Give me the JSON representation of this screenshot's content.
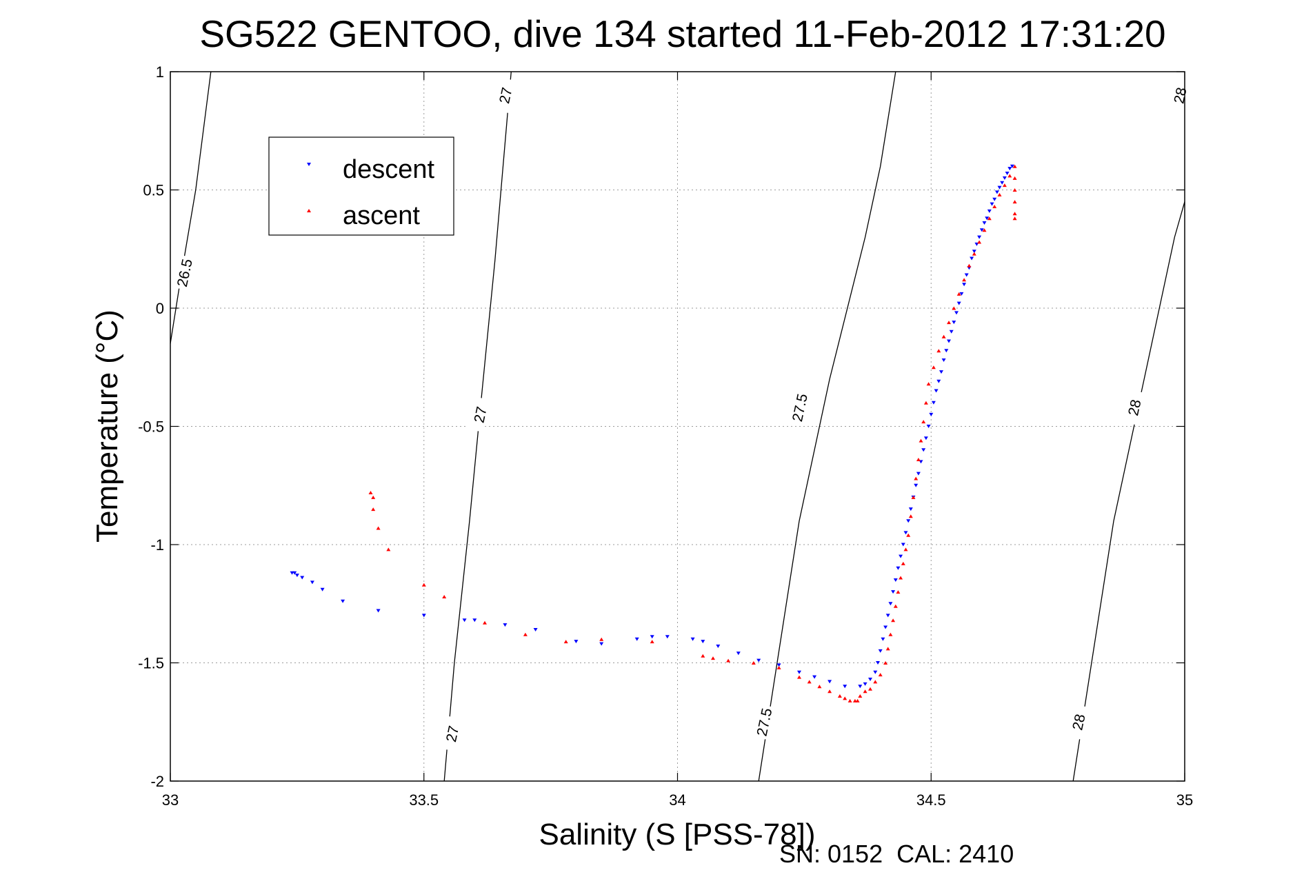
{
  "chart_data": {
    "type": "scatter",
    "title": "SG522 GENTOO, dive 134 started 11-Feb-2012 17:31:20",
    "xlabel": "Salinity (S [PSS-78])",
    "ylabel": "Temperature (°C)",
    "footer": "SN: 0152  CAL: 2410",
    "xlim": [
      33,
      35
    ],
    "ylim": [
      -2,
      1
    ],
    "xticks": [
      33,
      33.5,
      34,
      34.5,
      35
    ],
    "xtick_labels": [
      "33",
      "33.5",
      "34",
      "34.5",
      "35"
    ],
    "yticks": [
      -2,
      -1.5,
      -1,
      -0.5,
      0,
      0.5,
      1
    ],
    "ytick_labels": [
      "-2",
      "-1.5",
      "-1",
      "-0.5",
      "0",
      "0.5",
      "1"
    ],
    "grid": true,
    "legend_position": "top-left",
    "series": [
      {
        "name": "descent",
        "color": "#0000ff",
        "marker": "triangle-down",
        "points": [
          [
            34.66,
            0.6
          ],
          [
            34.655,
            0.59
          ],
          [
            34.65,
            0.57
          ],
          [
            34.645,
            0.55
          ],
          [
            34.64,
            0.53
          ],
          [
            34.635,
            0.51
          ],
          [
            34.63,
            0.49
          ],
          [
            34.625,
            0.46
          ],
          [
            34.62,
            0.44
          ],
          [
            34.615,
            0.41
          ],
          [
            34.61,
            0.38
          ],
          [
            34.605,
            0.36
          ],
          [
            34.6,
            0.33
          ],
          [
            34.595,
            0.3
          ],
          [
            34.59,
            0.27
          ],
          [
            34.585,
            0.24
          ],
          [
            34.58,
            0.21
          ],
          [
            34.575,
            0.17
          ],
          [
            34.57,
            0.14
          ],
          [
            34.565,
            0.1
          ],
          [
            34.56,
            0.06
          ],
          [
            34.555,
            0.02
          ],
          [
            34.55,
            -0.02
          ],
          [
            34.545,
            -0.06
          ],
          [
            34.54,
            -0.1
          ],
          [
            34.535,
            -0.14
          ],
          [
            34.53,
            -0.18
          ],
          [
            34.525,
            -0.22
          ],
          [
            34.52,
            -0.27
          ],
          [
            34.515,
            -0.31
          ],
          [
            34.51,
            -0.35
          ],
          [
            34.505,
            -0.4
          ],
          [
            34.5,
            -0.45
          ],
          [
            34.495,
            -0.5
          ],
          [
            34.49,
            -0.55
          ],
          [
            34.485,
            -0.6
          ],
          [
            34.48,
            -0.65
          ],
          [
            34.475,
            -0.7
          ],
          [
            34.47,
            -0.75
          ],
          [
            34.465,
            -0.8
          ],
          [
            34.46,
            -0.85
          ],
          [
            34.455,
            -0.9
          ],
          [
            34.45,
            -0.95
          ],
          [
            34.445,
            -1.0
          ],
          [
            34.44,
            -1.05
          ],
          [
            34.435,
            -1.1
          ],
          [
            34.43,
            -1.15
          ],
          [
            34.425,
            -1.2
          ],
          [
            34.42,
            -1.25
          ],
          [
            34.415,
            -1.3
          ],
          [
            34.41,
            -1.35
          ],
          [
            34.405,
            -1.4
          ],
          [
            34.4,
            -1.45
          ],
          [
            34.395,
            -1.5
          ],
          [
            34.39,
            -1.54
          ],
          [
            34.38,
            -1.57
          ],
          [
            34.37,
            -1.59
          ],
          [
            34.36,
            -1.6
          ],
          [
            34.33,
            -1.6
          ],
          [
            34.3,
            -1.58
          ],
          [
            34.27,
            -1.56
          ],
          [
            34.24,
            -1.54
          ],
          [
            34.2,
            -1.51
          ],
          [
            34.16,
            -1.49
          ],
          [
            34.12,
            -1.46
          ],
          [
            34.08,
            -1.43
          ],
          [
            34.05,
            -1.41
          ],
          [
            34.03,
            -1.4
          ],
          [
            33.98,
            -1.39
          ],
          [
            33.95,
            -1.39
          ],
          [
            33.92,
            -1.4
          ],
          [
            33.85,
            -1.42
          ],
          [
            33.8,
            -1.41
          ],
          [
            33.72,
            -1.36
          ],
          [
            33.66,
            -1.34
          ],
          [
            33.6,
            -1.32
          ],
          [
            33.58,
            -1.32
          ],
          [
            33.5,
            -1.3
          ],
          [
            33.41,
            -1.28
          ],
          [
            33.34,
            -1.24
          ],
          [
            33.3,
            -1.19
          ],
          [
            33.28,
            -1.16
          ],
          [
            33.26,
            -1.14
          ],
          [
            33.25,
            -1.13
          ],
          [
            33.245,
            -1.12
          ],
          [
            33.24,
            -1.12
          ]
        ]
      },
      {
        "name": "ascent",
        "color": "#ff0000",
        "marker": "triangle-up",
        "points": [
          [
            34.665,
            0.6
          ],
          [
            34.665,
            0.55
          ],
          [
            34.665,
            0.5
          ],
          [
            34.665,
            0.45
          ],
          [
            34.665,
            0.4
          ],
          [
            34.665,
            0.38
          ],
          [
            34.655,
            0.56
          ],
          [
            34.645,
            0.52
          ],
          [
            34.635,
            0.48
          ],
          [
            34.625,
            0.43
          ],
          [
            34.615,
            0.38
          ],
          [
            34.605,
            0.33
          ],
          [
            34.595,
            0.28
          ],
          [
            34.585,
            0.23
          ],
          [
            34.575,
            0.18
          ],
          [
            34.565,
            0.12
          ],
          [
            34.555,
            0.06
          ],
          [
            34.545,
            0.0
          ],
          [
            34.535,
            -0.06
          ],
          [
            34.525,
            -0.12
          ],
          [
            34.515,
            -0.18
          ],
          [
            34.505,
            -0.25
          ],
          [
            34.495,
            -0.32
          ],
          [
            34.49,
            -0.4
          ],
          [
            34.485,
            -0.48
          ],
          [
            34.48,
            -0.56
          ],
          [
            34.475,
            -0.64
          ],
          [
            34.47,
            -0.72
          ],
          [
            34.465,
            -0.8
          ],
          [
            34.46,
            -0.88
          ],
          [
            34.455,
            -0.96
          ],
          [
            34.45,
            -1.02
          ],
          [
            34.445,
            -1.08
          ],
          [
            34.44,
            -1.14
          ],
          [
            34.435,
            -1.2
          ],
          [
            34.43,
            -1.26
          ],
          [
            34.425,
            -1.32
          ],
          [
            34.42,
            -1.38
          ],
          [
            34.415,
            -1.44
          ],
          [
            34.41,
            -1.5
          ],
          [
            34.4,
            -1.55
          ],
          [
            34.39,
            -1.58
          ],
          [
            34.38,
            -1.61
          ],
          [
            34.37,
            -1.62
          ],
          [
            34.36,
            -1.64
          ],
          [
            34.355,
            -1.66
          ],
          [
            34.35,
            -1.66
          ],
          [
            34.34,
            -1.66
          ],
          [
            34.33,
            -1.65
          ],
          [
            34.32,
            -1.64
          ],
          [
            34.3,
            -1.62
          ],
          [
            34.28,
            -1.6
          ],
          [
            34.26,
            -1.58
          ],
          [
            34.24,
            -1.56
          ],
          [
            34.2,
            -1.52
          ],
          [
            34.15,
            -1.5
          ],
          [
            34.1,
            -1.49
          ],
          [
            34.07,
            -1.48
          ],
          [
            34.05,
            -1.47
          ],
          [
            33.95,
            -1.41
          ],
          [
            33.85,
            -1.4
          ],
          [
            33.78,
            -1.41
          ],
          [
            33.7,
            -1.38
          ],
          [
            33.62,
            -1.33
          ],
          [
            33.54,
            -1.22
          ],
          [
            33.5,
            -1.17
          ],
          [
            33.43,
            -1.02
          ],
          [
            33.41,
            -0.93
          ],
          [
            33.4,
            -0.85
          ],
          [
            33.4,
            -0.8
          ],
          [
            33.395,
            -0.78
          ]
        ]
      }
    ],
    "contours": [
      {
        "label": "26.5",
        "line": [
          [
            33.0,
            -0.15
          ],
          [
            33.02,
            0.12
          ],
          [
            33.05,
            0.5
          ],
          [
            33.08,
            1.0
          ]
        ],
        "label_at": [
          [
            33.027,
            0.15
          ]
        ]
      },
      {
        "label": "27",
        "line": [
          [
            33.54,
            -2.0
          ],
          [
            33.56,
            -1.5
          ],
          [
            33.59,
            -0.9
          ],
          [
            33.61,
            -0.45
          ],
          [
            33.64,
            0.2
          ],
          [
            33.67,
            0.95
          ],
          [
            33.672,
            1.0
          ]
        ],
        "label_at": [
          [
            33.555,
            -1.8
          ],
          [
            33.61,
            -0.45
          ],
          [
            33.66,
            0.9
          ]
        ]
      },
      {
        "label": "27.5",
        "line": [
          [
            34.16,
            -2.0
          ],
          [
            34.2,
            -1.45
          ],
          [
            34.24,
            -0.9
          ],
          [
            34.3,
            -0.3
          ],
          [
            34.37,
            0.3
          ],
          [
            34.4,
            0.6
          ],
          [
            34.43,
            1.0
          ]
        ],
        "label_at": [
          [
            34.17,
            -1.75
          ],
          [
            34.24,
            -0.42
          ]
        ]
      },
      {
        "label": "28",
        "line": [
          [
            34.78,
            -2.0
          ],
          [
            34.82,
            -1.45
          ],
          [
            34.86,
            -0.9
          ],
          [
            34.92,
            -0.3
          ],
          [
            34.98,
            0.3
          ],
          [
            35.0,
            0.45
          ]
        ],
        "label_at": [
          [
            34.79,
            -1.75
          ],
          [
            34.9,
            -0.42
          ],
          [
            34.99,
            0.9
          ]
        ]
      }
    ]
  }
}
